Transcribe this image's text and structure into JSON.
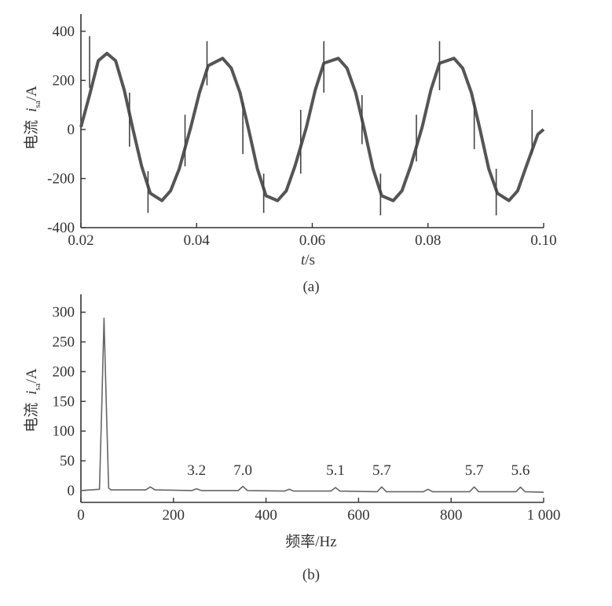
{
  "chart_data": [
    {
      "type": "line",
      "panel_label": "(a)",
      "xlabel": "t/s",
      "ylabel": "电流 i_sa/A",
      "ylabel_parts": {
        "prefix": "电流",
        "var": "i",
        "sub": "sa",
        "unit": "/A"
      },
      "xlabel_parts": {
        "var": "t",
        "unit": "/s"
      },
      "xlim": [
        0.02,
        0.1
      ],
      "ylim": [
        -400,
        470
      ],
      "xticks": [
        0.02,
        0.04,
        0.06,
        0.08,
        0.1
      ],
      "xtick_labels": [
        "0.02",
        "0.04",
        "0.06",
        "0.08",
        "0.10"
      ],
      "yticks": [
        -400,
        -200,
        0,
        200,
        400
      ],
      "ytick_labels": [
        "-400",
        "-200",
        "0",
        "200",
        "400"
      ],
      "series": [
        {
          "amplitude": 290,
          "frequency_hz": 50,
          "points": [
            [
              0.02,
              10
            ],
            [
              0.0215,
              140
            ],
            [
              0.023,
              280
            ],
            [
              0.0245,
              310
            ],
            [
              0.026,
              280
            ],
            [
              0.0275,
              160
            ],
            [
              0.029,
              0
            ],
            [
              0.0305,
              -150
            ],
            [
              0.032,
              -260
            ],
            [
              0.034,
              -290
            ],
            [
              0.0355,
              -250
            ],
            [
              0.037,
              -160
            ],
            [
              0.039,
              10
            ],
            [
              0.0405,
              150
            ],
            [
              0.042,
              260
            ],
            [
              0.0445,
              290
            ],
            [
              0.046,
              250
            ],
            [
              0.0475,
              150
            ],
            [
              0.049,
              0
            ],
            [
              0.0505,
              -160
            ],
            [
              0.052,
              -270
            ],
            [
              0.054,
              -290
            ],
            [
              0.0555,
              -250
            ],
            [
              0.057,
              -150
            ],
            [
              0.059,
              10
            ],
            [
              0.0605,
              160
            ],
            [
              0.062,
              270
            ],
            [
              0.0645,
              290
            ],
            [
              0.066,
              250
            ],
            [
              0.0675,
              150
            ],
            [
              0.069,
              0
            ],
            [
              0.0705,
              -160
            ],
            [
              0.072,
              -270
            ],
            [
              0.074,
              -290
            ],
            [
              0.0755,
              -250
            ],
            [
              0.077,
              -150
            ],
            [
              0.079,
              10
            ],
            [
              0.0805,
              160
            ],
            [
              0.082,
              270
            ],
            [
              0.0845,
              290
            ],
            [
              0.086,
              250
            ],
            [
              0.0875,
              150
            ],
            [
              0.089,
              0
            ],
            [
              0.0905,
              -160
            ],
            [
              0.092,
              -260
            ],
            [
              0.094,
              -290
            ],
            [
              0.0955,
              -250
            ],
            [
              0.097,
              -150
            ],
            [
              0.099,
              -20
            ],
            [
              0.1,
              0
            ]
          ]
        }
      ],
      "spikes": [
        [
          0.0215,
          170,
          380
        ],
        [
          0.0284,
          -70,
          150
        ],
        [
          0.0316,
          -340,
          -170
        ],
        [
          0.038,
          -150,
          60
        ],
        [
          0.0418,
          180,
          360
        ],
        [
          0.048,
          -100,
          110
        ],
        [
          0.0516,
          -340,
          -180
        ],
        [
          0.058,
          -180,
          80
        ],
        [
          0.062,
          150,
          360
        ],
        [
          0.0686,
          -60,
          140
        ],
        [
          0.0718,
          -350,
          -180
        ],
        [
          0.078,
          -130,
          60
        ],
        [
          0.082,
          160,
          360
        ],
        [
          0.088,
          -80,
          110
        ],
        [
          0.0918,
          -350,
          -160
        ],
        [
          0.098,
          -100,
          80
        ]
      ]
    },
    {
      "type": "line",
      "panel_label": "(b)",
      "xlabel": "频率/Hz",
      "ylabel": "电流 i_sa/A",
      "ylabel_parts": {
        "prefix": "电流",
        "var": "i",
        "sub": "sa",
        "unit": "/A"
      },
      "xlim": [
        0,
        1000
      ],
      "ylim": [
        -20,
        330
      ],
      "xticks": [
        0,
        200,
        400,
        600,
        800,
        1000
      ],
      "xtick_labels": [
        "0",
        "200",
        "400",
        "600",
        "800",
        "1 000"
      ],
      "yticks": [
        0,
        50,
        100,
        150,
        200,
        250,
        300
      ],
      "ytick_labels": [
        "0",
        "50",
        "100",
        "150",
        "200",
        "250",
        "300"
      ],
      "series": [
        {
          "points": [
            [
              0,
              0
            ],
            [
              40,
              2
            ],
            [
              45,
              140
            ],
            [
              50,
              290
            ],
            [
              55,
              140
            ],
            [
              60,
              4
            ],
            [
              65,
              1
            ],
            [
              140,
              1
            ],
            [
              150,
              6
            ],
            [
              160,
              1
            ],
            [
              240,
              0
            ],
            [
              250,
              3
            ],
            [
              260,
              0
            ],
            [
              340,
              0
            ],
            [
              350,
              7
            ],
            [
              360,
              0
            ],
            [
              440,
              -1
            ],
            [
              450,
              2
            ],
            [
              460,
              -1
            ],
            [
              540,
              -1
            ],
            [
              550,
              5
            ],
            [
              560,
              -1
            ],
            [
              640,
              -2
            ],
            [
              650,
              6
            ],
            [
              660,
              -2
            ],
            [
              740,
              -2
            ],
            [
              750,
              2
            ],
            [
              760,
              -2
            ],
            [
              840,
              -2
            ],
            [
              850,
              6
            ],
            [
              860,
              -2
            ],
            [
              940,
              -2
            ],
            [
              950,
              5.6
            ],
            [
              960,
              -2
            ],
            [
              1000,
              -3
            ]
          ]
        }
      ],
      "harmonic_labels": [
        {
          "x": 250,
          "text": "3.2"
        },
        {
          "x": 350,
          "text": "7.0"
        },
        {
          "x": 550,
          "text": "5.1"
        },
        {
          "x": 650,
          "text": "5.7"
        },
        {
          "x": 850,
          "text": "5.7"
        },
        {
          "x": 950,
          "text": "5.6"
        }
      ]
    }
  ]
}
